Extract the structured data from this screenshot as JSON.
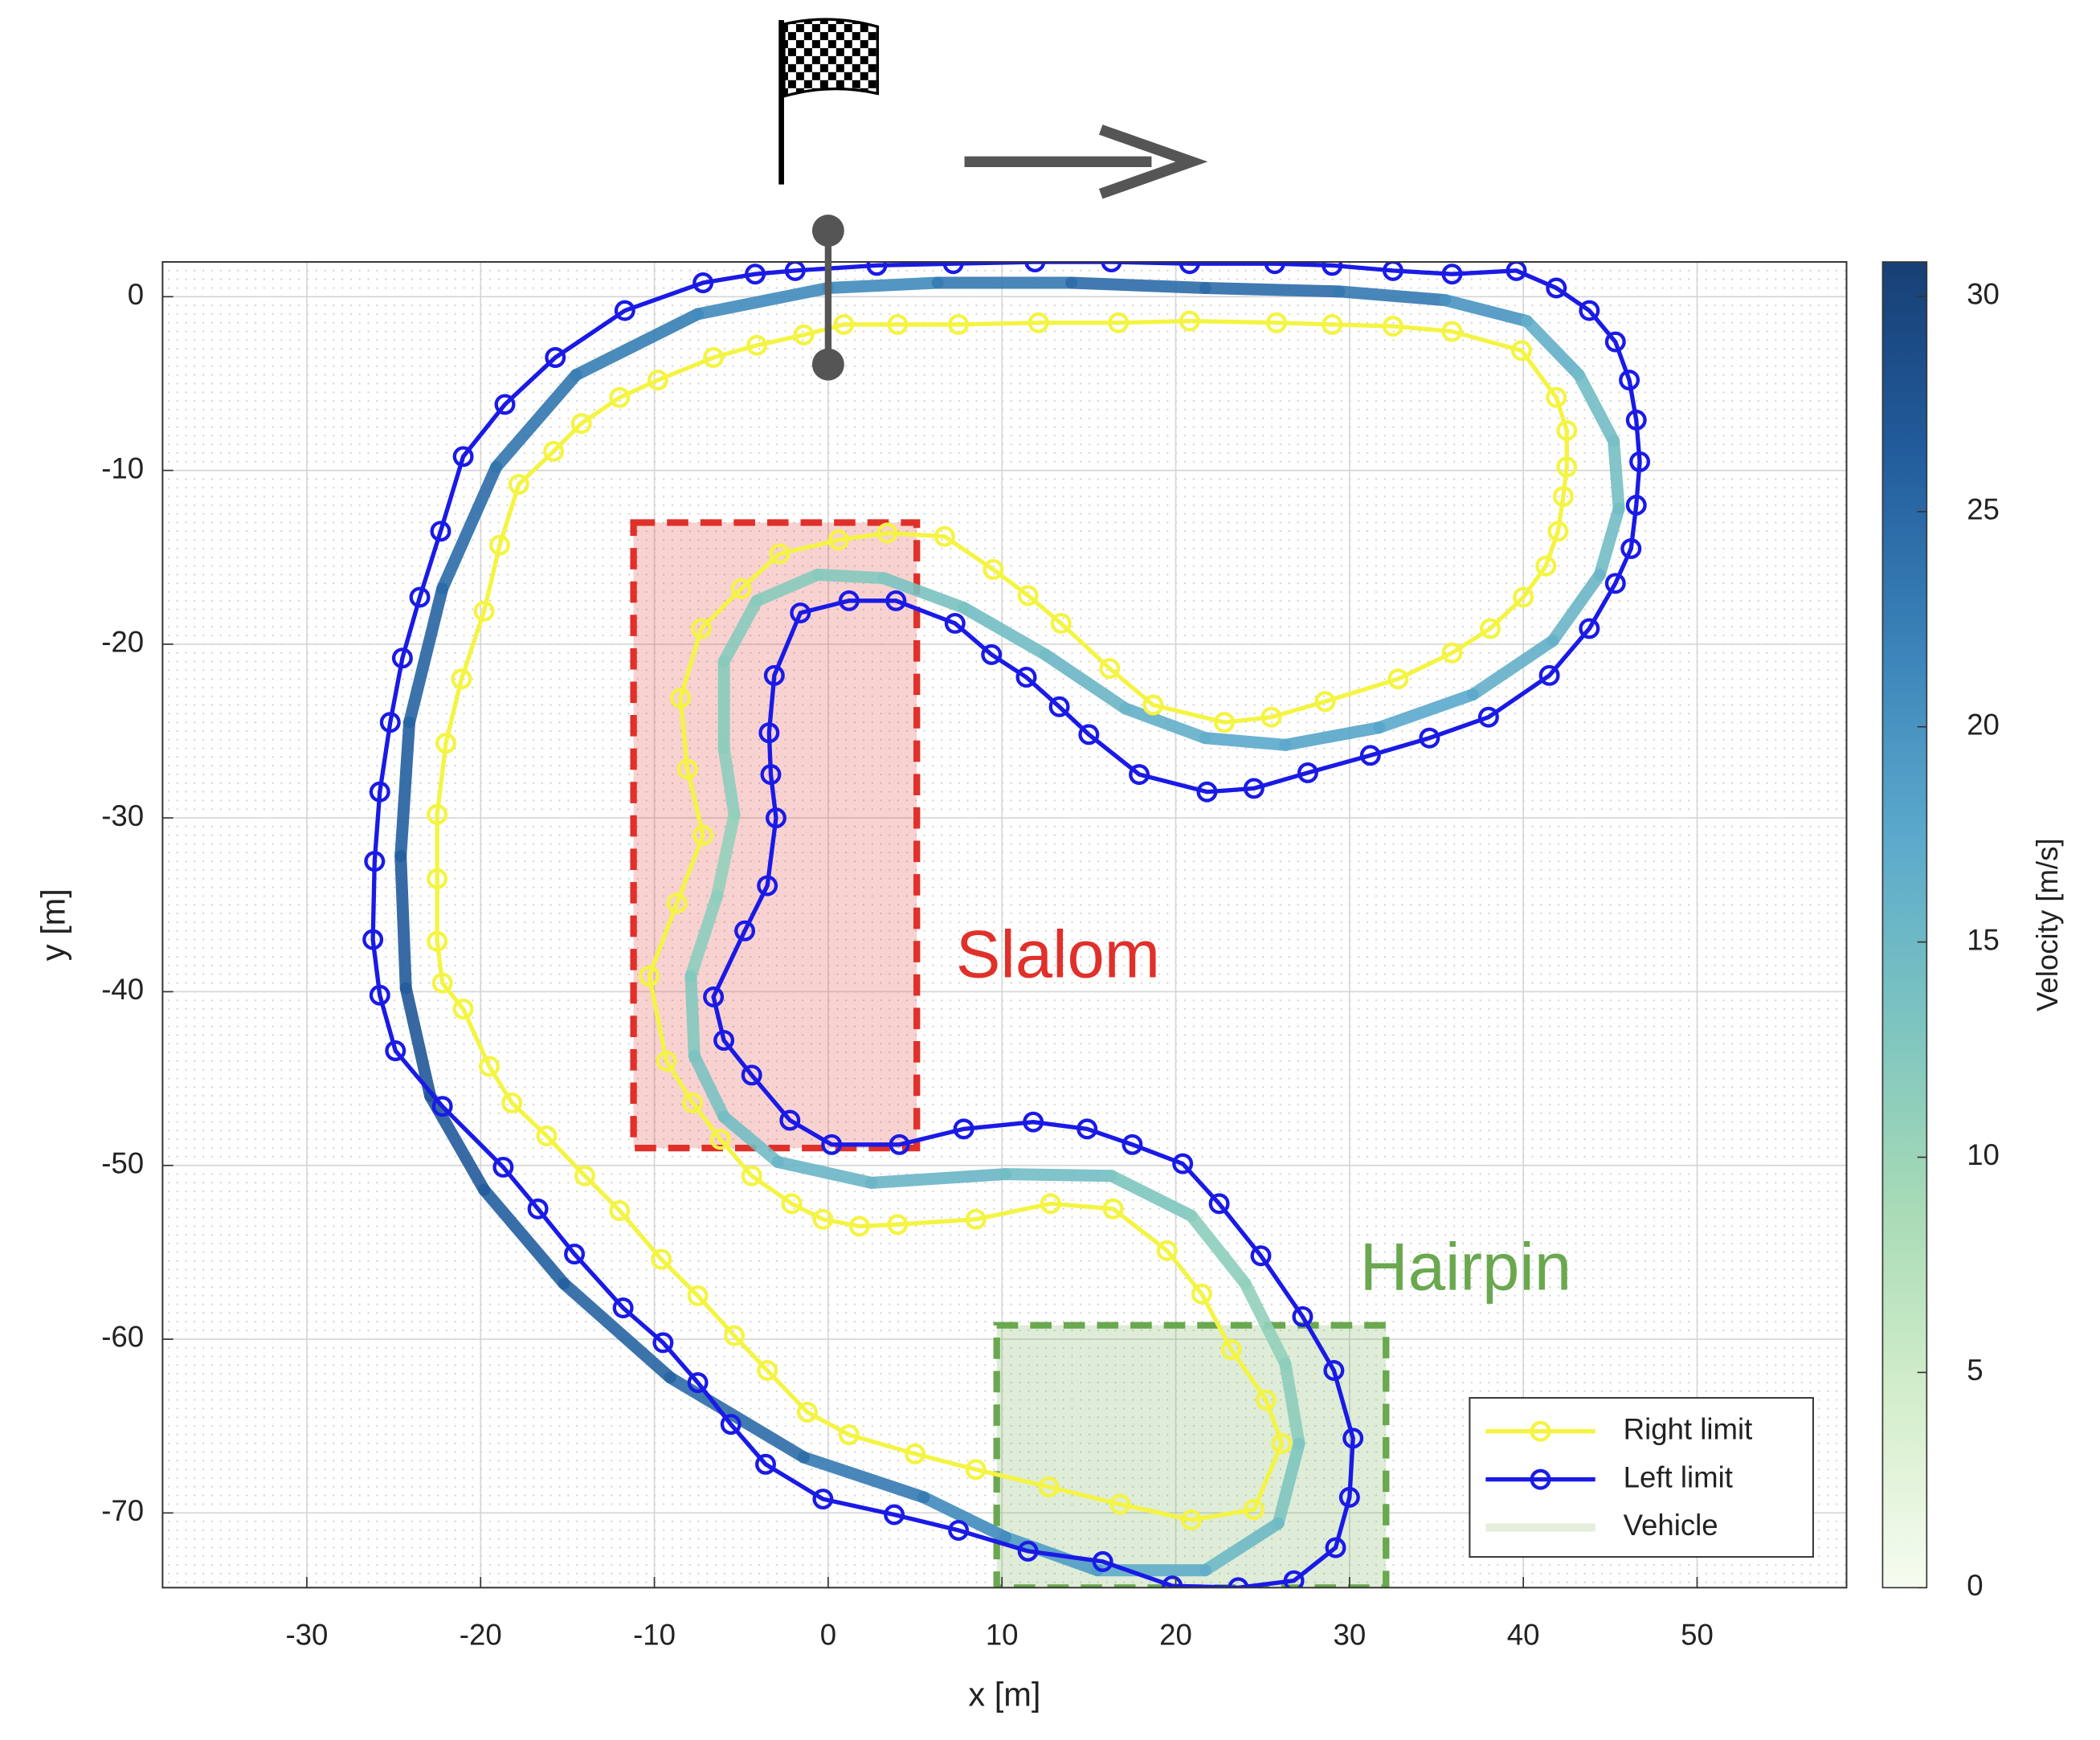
{
  "chart_data": {
    "type": "line",
    "xlabel": "x [m]",
    "ylabel": "y [m]",
    "xlim": [
      -38.3,
      58.6
    ],
    "ylim": [
      -74.3,
      2
    ],
    "xticks": [
      -30,
      -20,
      -10,
      0,
      10,
      20,
      30,
      40,
      50
    ],
    "yticks": [
      0,
      -10,
      -20,
      -30,
      -40,
      -50,
      -60,
      -70
    ],
    "grid": true,
    "legend": "lower right",
    "series": [
      {
        "name": "Right limit",
        "color": "#f4f443",
        "x": [
          -1.4,
          0.9,
          4.0,
          7.5,
          12.1,
          16.7,
          20.8,
          25.8,
          29.0,
          32.5,
          35.9,
          39.9,
          41.9,
          42.5,
          42.5,
          42.3,
          42.0,
          41.3,
          40.0,
          38.1,
          35.9,
          32.8,
          28.6,
          25.5,
          22.8,
          18.7,
          16.2,
          13.4,
          11.5,
          9.5,
          6.7,
          3.4,
          0.6,
          -2.8,
          -5.0,
          -7.3,
          -8.5,
          -8.1,
          -7.2,
          -8.7,
          -10.3,
          -9.3,
          -7.8,
          -6.2,
          -4.4,
          -2.1,
          -0.3,
          1.8,
          4.0,
          8.5,
          12.8,
          16.4,
          19.5,
          21.5,
          23.2,
          25.2,
          26.1,
          24.5,
          20.9,
          16.8,
          12.7,
          8.5,
          5.0,
          1.2,
          -1.2,
          -3.5,
          -5.4,
          -7.5,
          -9.6,
          -12.0,
          -14.0,
          -16.2,
          -18.2,
          -19.5,
          -21.0,
          -22.2,
          -22.5,
          -22.5,
          -22.5,
          -22.0,
          -21.1,
          -19.8,
          -18.9,
          -17.8,
          -15.8,
          -14.2,
          -12.0,
          -9.8,
          -6.6,
          -4.1,
          -1.4
        ],
        "y": [
          -2.2,
          -1.6,
          -1.6,
          -1.6,
          -1.5,
          -1.5,
          -1.4,
          -1.5,
          -1.6,
          -1.7,
          -2.0,
          -3.1,
          -5.8,
          -7.7,
          -9.8,
          -11.5,
          -13.5,
          -15.5,
          -17.3,
          -19.1,
          -20.5,
          -22.0,
          -23.3,
          -24.2,
          -24.5,
          -23.5,
          -21.4,
          -18.8,
          -17.2,
          -15.7,
          -13.8,
          -13.6,
          -14.0,
          -14.8,
          -16.8,
          -19.1,
          -23.1,
          -27.2,
          -31.0,
          -34.9,
          -39.1,
          -44.0,
          -46.4,
          -48.5,
          -50.6,
          -52.2,
          -53.1,
          -53.5,
          -53.4,
          -53.1,
          -52.2,
          -52.5,
          -54.9,
          -57.4,
          -60.6,
          -63.5,
          -66.0,
          -69.8,
          -70.4,
          -69.5,
          -68.5,
          -67.5,
          -66.6,
          -65.5,
          -64.2,
          -61.8,
          -59.8,
          -57.5,
          -55.4,
          -52.6,
          -50.6,
          -48.3,
          -46.4,
          -44.3,
          -41.0,
          -39.5,
          -37.1,
          -33.5,
          -29.8,
          -25.7,
          -22.0,
          -18.1,
          -14.3,
          -10.8,
          -8.9,
          -7.3,
          -5.8,
          -4.8,
          -3.5,
          -2.8,
          -2.2
        ]
      },
      {
        "name": "Left limit",
        "color": "#1a1ae6",
        "x": [
          -1.9,
          2.8,
          7.2,
          11.9,
          16.3,
          20.8,
          25.7,
          29.0,
          32.5,
          35.9,
          39.6,
          41.9,
          43.8,
          45.3,
          46.1,
          46.5,
          46.7,
          46.5,
          46.2,
          45.3,
          43.8,
          41.5,
          38.0,
          34.6,
          31.2,
          27.6,
          24.5,
          21.8,
          17.9,
          15.0,
          13.3,
          11.4,
          9.4,
          7.3,
          3.9,
          1.2,
          -1.6,
          -3.1,
          -3.4,
          -3.3,
          -3.0,
          -3.5,
          -4.8,
          -6.6,
          -6.0,
          -4.4,
          -2.2,
          0.2,
          4.1,
          7.8,
          11.8,
          14.9,
          17.5,
          20.4,
          22.5,
          24.9,
          27.3,
          29.1,
          30.2,
          30.0,
          29.2,
          26.8,
          23.6,
          19.8,
          15.8,
          11.5,
          7.5,
          3.8,
          -0.3,
          -3.6,
          -5.6,
          -7.5,
          -9.5,
          -11.8,
          -14.6,
          -16.7,
          -18.7,
          -22.2,
          -24.9,
          -25.8,
          -26.2,
          -26.1,
          -25.8,
          -25.2,
          -24.5,
          -23.5,
          -22.3,
          -21.0,
          -18.6,
          -15.7,
          -11.7,
          -7.2,
          -4.2,
          -1.9
        ],
        "y": [
          1.5,
          1.8,
          1.9,
          2.0,
          2.0,
          1.9,
          1.9,
          1.8,
          1.5,
          1.3,
          1.5,
          0.5,
          -0.8,
          -2.6,
          -4.8,
          -7.1,
          -9.5,
          -12.0,
          -14.5,
          -16.5,
          -19.1,
          -21.8,
          -24.2,
          -25.4,
          -26.4,
          -27.4,
          -28.3,
          -28.5,
          -27.5,
          -25.2,
          -23.6,
          -21.9,
          -20.6,
          -18.8,
          -17.5,
          -17.5,
          -18.2,
          -21.8,
          -25.1,
          -27.5,
          -30.0,
          -33.9,
          -36.5,
          -40.3,
          -42.8,
          -44.8,
          -47.4,
          -48.8,
          -48.8,
          -47.9,
          -47.5,
          -47.9,
          -48.8,
          -49.9,
          -52.2,
          -55.2,
          -58.7,
          -61.8,
          -65.7,
          -69.1,
          -72.0,
          -73.9,
          -74.3,
          -74.2,
          -72.8,
          -72.2,
          -71.0,
          -70.1,
          -69.2,
          -67.2,
          -64.9,
          -62.5,
          -60.2,
          -58.2,
          -55.1,
          -52.5,
          -50.1,
          -46.6,
          -43.4,
          -40.2,
          -37.0,
          -32.5,
          -28.5,
          -24.5,
          -20.8,
          -17.3,
          -13.5,
          -9.2,
          -6.2,
          -3.5,
          -0.8,
          0.8,
          1.3,
          1.5
        ]
      },
      {
        "name": "Vehicle",
        "color": "#e6eedc",
        "x": [
          0,
          6.3,
          14.0,
          21.7,
          29.4,
          35.5,
          40.2,
          43.2,
          45.2,
          45.5,
          44.4,
          41.7,
          37.1,
          31.7,
          26.3,
          21.7,
          17.1,
          12.5,
          7.8,
          3.2,
          -0.6,
          -4.1,
          -6.0,
          -6.0,
          -5.4,
          -6.4,
          -7.9,
          -7.7,
          -6.0,
          -2.9,
          2.5,
          10.2,
          16.3,
          20.9,
          24.0,
          26.3,
          27.1,
          25.9,
          21.7,
          15.5,
          10.2,
          5.5,
          -1.4,
          -9.1,
          -15.2,
          -19.8,
          -22.9,
          -24.3,
          -24.6,
          -24.1,
          -22.2,
          -19.1,
          -14.5,
          -7.5,
          0
        ],
        "y": [
          0.5,
          0.8,
          0.8,
          0.5,
          0.3,
          -0.2,
          -1.4,
          -4.5,
          -8.3,
          -12.2,
          -16.0,
          -19.8,
          -22.9,
          -24.8,
          -25.8,
          -25.4,
          -23.7,
          -20.6,
          -17.9,
          -16.2,
          -16.0,
          -17.5,
          -21.0,
          -26.0,
          -29.8,
          -34.5,
          -39.1,
          -43.7,
          -47.2,
          -49.8,
          -51.0,
          -50.5,
          -50.6,
          -52.9,
          -56.8,
          -61.4,
          -66.0,
          -70.6,
          -73.3,
          -73.3,
          -71.4,
          -69.1,
          -66.8,
          -62.2,
          -56.8,
          -51.4,
          -46.0,
          -39.8,
          -32.2,
          -24.5,
          -16.8,
          -9.8,
          -4.5,
          -1.0,
          0.5
        ],
        "velocity": [
          20,
          22,
          24,
          25,
          24,
          22,
          18,
          15,
          14,
          14,
          15,
          16,
          17,
          18,
          18,
          17,
          16,
          15,
          14,
          13,
          12,
          12,
          12,
          12,
          11,
          11,
          12,
          13,
          14,
          15,
          16,
          15,
          14,
          12,
          11,
          11,
          12,
          14,
          16,
          18,
          20,
          22,
          24,
          25,
          26,
          26,
          27,
          27,
          26,
          26,
          25,
          24,
          23,
          22,
          20
        ]
      }
    ],
    "colorbar": {
      "label": "Velocity [m/s]",
      "lim": [
        0,
        30.8
      ],
      "ticks": [
        0,
        5,
        10,
        15,
        20,
        25,
        30
      ],
      "colors": [
        "#f7fcf0",
        "#d4eecb",
        "#a8dbb6",
        "#7cc4c0",
        "#5aa8cc",
        "#3a82b8",
        "#225c9c",
        "#173f75"
      ]
    },
    "regions": [
      {
        "label": "Slalom",
        "color": "#e0302a",
        "x": [
          -11.2,
          5.1
        ],
        "y": [
          -13,
          -49
        ]
      },
      {
        "label": "Hairpin",
        "color": "#6aa84f",
        "x": [
          9.7,
          32.1
        ],
        "y": [
          -59.2,
          -74.3
        ]
      }
    ],
    "start_line": {
      "x": 0,
      "y": [
        3.8,
        -3.9
      ],
      "color": "#555555"
    }
  }
}
